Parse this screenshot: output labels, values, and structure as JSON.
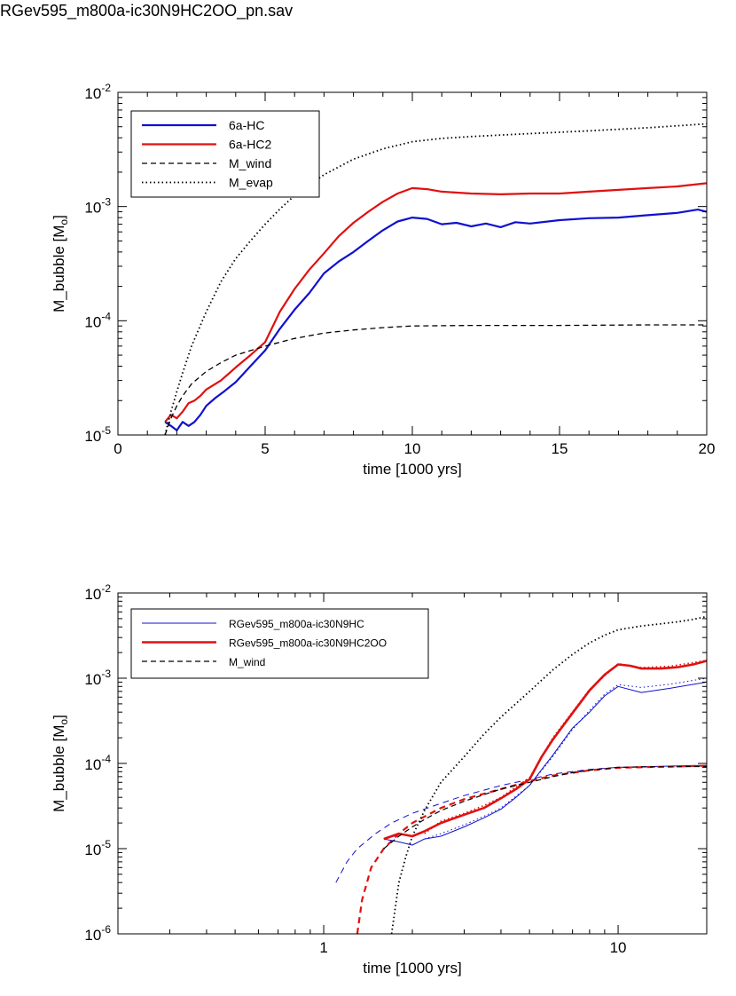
{
  "page_title": "RGev595_m800a-ic30N9HC2OO_pn.sav",
  "chart_data": [
    {
      "type": "line",
      "xscale": "linear",
      "yscale": "log",
      "xlim": [
        0,
        20
      ],
      "ylim": [
        1e-05,
        0.01
      ],
      "xlabel": "time [1000 yrs]",
      "ylabel_main": "M_bubble [M",
      "ylabel_sub": "o",
      "ylabel_close": "]",
      "x_ticks": [
        0,
        5,
        10,
        15,
        20
      ],
      "x_tick_labels": [
        "0",
        "5",
        "10",
        "15",
        "20"
      ],
      "y_ticks": [
        {
          "value": 1e-05,
          "base": "10",
          "exp": "-5"
        },
        {
          "value": 0.0001,
          "base": "10",
          "exp": "-4"
        },
        {
          "value": 0.001,
          "base": "10",
          "exp": "-3"
        },
        {
          "value": 0.01,
          "base": "10",
          "exp": "-2"
        }
      ],
      "legend_position": "top-left",
      "series": [
        {
          "name": "6a-HC",
          "color": "#1010d0",
          "width": 2.2,
          "dash": "solid",
          "x": [
            1.6,
            1.8,
            2.0,
            2.2,
            2.4,
            2.6,
            2.8,
            3.0,
            3.3,
            3.6,
            4.0,
            4.5,
            5.0,
            5.5,
            6.0,
            6.5,
            7.0,
            7.5,
            8.0,
            8.5,
            9.0,
            9.5,
            10.0,
            10.5,
            11,
            11.5,
            12,
            12.5,
            13,
            13.5,
            14,
            15,
            16,
            17,
            18,
            19,
            19.7,
            20
          ],
          "y": [
            1.3e-05,
            1.2e-05,
            1.1e-05,
            1.3e-05,
            1.2e-05,
            1.3e-05,
            1.5e-05,
            1.8e-05,
            2.1e-05,
            2.4e-05,
            2.9e-05,
            4e-05,
            5.5e-05,
            8.5e-05,
            0.000125,
            0.000175,
            0.00026,
            0.00033,
            0.0004,
            0.0005,
            0.00062,
            0.00074,
            0.0008,
            0.00078,
            0.0007,
            0.00072,
            0.00067,
            0.00071,
            0.00066,
            0.00073,
            0.00071,
            0.00076,
            0.00079,
            0.0008,
            0.00084,
            0.00088,
            0.00094,
            0.0009
          ]
        },
        {
          "name": "6a-HC2",
          "color": "#e01010",
          "width": 2.2,
          "dash": "solid",
          "x": [
            1.6,
            1.8,
            2.0,
            2.2,
            2.4,
            2.6,
            2.8,
            3.0,
            3.5,
            4.0,
            4.5,
            5.0,
            5.5,
            6.0,
            6.5,
            7.0,
            7.5,
            8.0,
            8.5,
            9.0,
            9.5,
            10.0,
            10.5,
            11,
            12,
            13,
            14,
            15,
            16,
            17,
            18,
            19,
            20
          ],
          "y": [
            1.3e-05,
            1.5e-05,
            1.4e-05,
            1.6e-05,
            1.9e-05,
            2e-05,
            2.2e-05,
            2.5e-05,
            3e-05,
            3.9e-05,
            5e-05,
            6.5e-05,
            0.00012,
            0.00019,
            0.00028,
            0.00039,
            0.00055,
            0.00072,
            0.0009,
            0.0011,
            0.0013,
            0.00145,
            0.00142,
            0.00135,
            0.0013,
            0.00128,
            0.0013,
            0.0013,
            0.00135,
            0.0014,
            0.00145,
            0.0015,
            0.0016
          ]
        },
        {
          "name": "M_wind",
          "color": "#000000",
          "width": 1.3,
          "dash": "6,4",
          "x": [
            1.6,
            1.8,
            2.0,
            2.2,
            2.5,
            3.0,
            3.5,
            4.0,
            5.0,
            6.0,
            7.0,
            8.0,
            9.0,
            10,
            12,
            15,
            18,
            20
          ],
          "y": [
            1e-05,
            1.4e-05,
            1.8e-05,
            2.2e-05,
            2.8e-05,
            3.6e-05,
            4.3e-05,
            5e-05,
            6e-05,
            7e-05,
            7.8e-05,
            8.3e-05,
            8.7e-05,
            9e-05,
            9.1e-05,
            9.1e-05,
            9.2e-05,
            9.2e-05
          ]
        },
        {
          "name": "M_evap",
          "color": "#000000",
          "width": 1.8,
          "dash": "1.5,3",
          "x": [
            1.6,
            1.8,
            2.0,
            2.2,
            2.5,
            3.0,
            3.5,
            4.0,
            4.5,
            5.0,
            5.5,
            6.0,
            7.0,
            8.0,
            9.0,
            10,
            11,
            12,
            14,
            16,
            18,
            20
          ],
          "y": [
            1e-05,
            1.6e-05,
            2.4e-05,
            3.5e-05,
            6e-05,
            0.00012,
            0.00022,
            0.00035,
            0.0005,
            0.0007,
            0.00095,
            0.00125,
            0.0019,
            0.0026,
            0.0032,
            0.0037,
            0.00395,
            0.0041,
            0.00435,
            0.0046,
            0.0049,
            0.0053
          ]
        }
      ]
    },
    {
      "type": "line",
      "xscale": "log",
      "yscale": "log",
      "xlim": [
        0.2,
        20
      ],
      "ylim": [
        1e-06,
        0.01
      ],
      "xlabel": "time [1000 yrs]",
      "ylabel_main": "M_bubble [M",
      "ylabel_sub": "o",
      "ylabel_close": "]",
      "x_ticks": [
        1,
        10
      ],
      "x_tick_labels": [
        "1",
        "10"
      ],
      "y_ticks": [
        {
          "value": 1e-06,
          "base": "10",
          "exp": "-6"
        },
        {
          "value": 1e-05,
          "base": "10",
          "exp": "-5"
        },
        {
          "value": 0.0001,
          "base": "10",
          "exp": "-4"
        },
        {
          "value": 0.001,
          "base": "10",
          "exp": "-3"
        },
        {
          "value": 0.01,
          "base": "10",
          "exp": "-2"
        }
      ],
      "legend_position": "top-left",
      "series": [
        {
          "name": "RGev595_m800a-ic30N9HC",
          "color": "#1010d0",
          "width": 1.0,
          "dash": "solid",
          "x": [
            1.6,
            1.8,
            2.0,
            2.2,
            2.5,
            3.0,
            3.5,
            4.0,
            4.5,
            5.0,
            5.5,
            6.0,
            7.0,
            8.0,
            9.0,
            10,
            12,
            15,
            20
          ],
          "y": [
            1.3e-05,
            1.2e-05,
            1.1e-05,
            1.3e-05,
            1.4e-05,
            1.8e-05,
            2.3e-05,
            2.9e-05,
            4e-05,
            5.5e-05,
            8.5e-05,
            0.000125,
            0.00026,
            0.0004,
            0.00062,
            0.0008,
            0.00068,
            0.00076,
            0.0009
          ]
        },
        {
          "name": "RGev595_m800a-ic30N9HC2OO",
          "color": "#e01010",
          "width": 2.6,
          "dash": "solid",
          "x": [
            1.6,
            1.8,
            2.0,
            2.2,
            2.5,
            3.0,
            3.5,
            4.0,
            4.5,
            5.0,
            5.5,
            6.0,
            7.0,
            8.0,
            9.0,
            10,
            11,
            12,
            14,
            16,
            18,
            20
          ],
          "y": [
            1.3e-05,
            1.5e-05,
            1.4e-05,
            1.6e-05,
            2e-05,
            2.5e-05,
            3e-05,
            3.9e-05,
            5e-05,
            6.5e-05,
            0.00012,
            0.00019,
            0.00039,
            0.00072,
            0.0011,
            0.00145,
            0.0014,
            0.0013,
            0.0013,
            0.00135,
            0.00145,
            0.0016
          ]
        },
        {
          "name": "M_wind",
          "color": "#000000",
          "width": 1.2,
          "dash": "6,4",
          "x": [
            1.6,
            1.8,
            2.0,
            2.2,
            2.5,
            3.0,
            3.5,
            4.0,
            5.0,
            6.0,
            7.0,
            8.0,
            9.0,
            10,
            12,
            15,
            18,
            20
          ],
          "y": [
            1e-05,
            1.4e-05,
            1.8e-05,
            2.2e-05,
            2.8e-05,
            3.6e-05,
            4.3e-05,
            5e-05,
            6e-05,
            7e-05,
            7.8e-05,
            8.3e-05,
            8.7e-05,
            9e-05,
            9.1e-05,
            9.1e-05,
            9.2e-05,
            9.2e-05
          ]
        }
      ],
      "extra_lines": [
        {
          "color": "#1010d0",
          "width": 1.0,
          "dash": "7,5",
          "x": [
            1.1,
            1.2,
            1.3,
            1.5,
            1.7,
            2.0,
            2.5,
            3.0,
            4.0,
            5.0,
            6.0,
            8.0,
            10,
            15,
            20
          ],
          "y": [
            4e-06,
            7e-06,
            1e-05,
            1.5e-05,
            2e-05,
            2.6e-05,
            3.4e-05,
            4.2e-05,
            5.5e-05,
            6.5e-05,
            7.5e-05,
            8.5e-05,
            9e-05,
            9.3e-05,
            9.5e-05
          ]
        },
        {
          "color": "#e01010",
          "width": 2.2,
          "dash": "7,5",
          "x": [
            1.3,
            1.35,
            1.45,
            1.6,
            1.8,
            2.0,
            2.5,
            3.0,
            4.0,
            5.0,
            6.0,
            8.0,
            10,
            15,
            20
          ],
          "y": [
            1e-06,
            2.5e-06,
            6e-06,
            1e-05,
            1.5e-05,
            2e-05,
            3e-05,
            3.8e-05,
            5e-05,
            6.2e-05,
            7.2e-05,
            8.3e-05,
            8.9e-05,
            9.2e-05,
            9.4e-05
          ]
        },
        {
          "color": "#000000",
          "width": 1.8,
          "dash": "1.5,3",
          "x": [
            1.7,
            1.75,
            1.8,
            1.9,
            2.0,
            2.2,
            2.5,
            3.0,
            3.5,
            4.0,
            5.0,
            6.0,
            7.0,
            8.0,
            9.0,
            10,
            12,
            14,
            16,
            18,
            20
          ],
          "y": [
            1e-06,
            2e-06,
            4e-06,
            8e-06,
            1.4e-05,
            2.8e-05,
            6e-05,
            0.00012,
            0.00022,
            0.00035,
            0.0007,
            0.00125,
            0.0019,
            0.0026,
            0.0032,
            0.0037,
            0.0041,
            0.00435,
            0.0046,
            0.0049,
            0.0053
          ]
        },
        {
          "color": "#1010d0",
          "width": 1.0,
          "dash": "1.5,3",
          "x": [
            2.2,
            2.5,
            3.0,
            3.5,
            4.0,
            5.0,
            6.0,
            7.0,
            8.0,
            9.0,
            10,
            12,
            15,
            20
          ],
          "y": [
            1.3e-05,
            1.5e-05,
            1.9e-05,
            2.4e-05,
            3e-05,
            5.5e-05,
            0.00012,
            0.00025,
            0.00042,
            0.00065,
            0.00084,
            0.00078,
            0.00085,
            0.001
          ]
        },
        {
          "color": "#e01010",
          "width": 1.6,
          "dash": "1.5,3",
          "x": [
            2.2,
            2.5,
            3.0,
            3.5,
            4.0,
            5.0,
            6.0,
            8.0,
            10,
            12,
            15,
            20
          ],
          "y": [
            1.5e-05,
            2.1e-05,
            2.6e-05,
            3.2e-05,
            4e-05,
            6.8e-05,
            0.0002,
            0.00074,
            0.00148,
            0.00133,
            0.00138,
            0.00162
          ]
        }
      ]
    }
  ]
}
